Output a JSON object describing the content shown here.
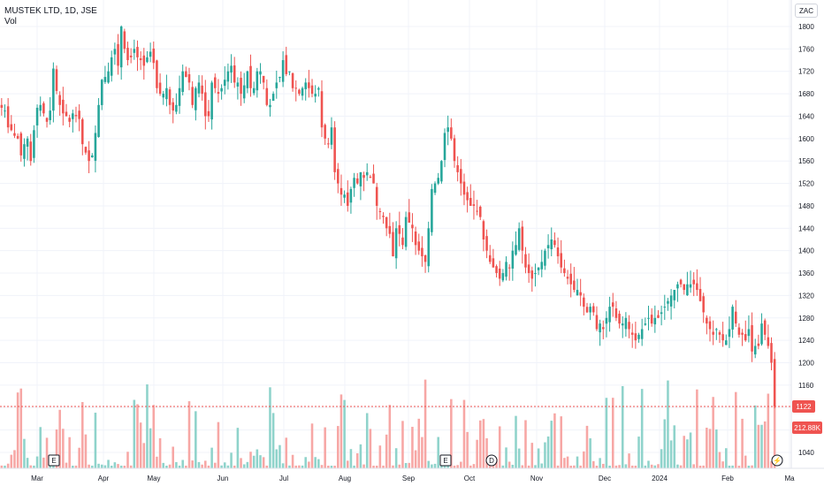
{
  "header": {
    "symbol": "MUSTEK LTD, 1D, JSE",
    "volume_label": "Vol",
    "currency": "ZAC"
  },
  "colors": {
    "up": "#26a69a",
    "down": "#ef5350",
    "up_vol": "#8fd3cb",
    "down_vol": "#f7a7a5",
    "grid": "#f0f3fa",
    "axis_text": "#131722",
    "last_price_line": "#ef5350"
  },
  "chart_data": {
    "type": "candlestick",
    "y_ticks": [
      1040,
      1080,
      1120,
      1160,
      1200,
      1240,
      1280,
      1320,
      1360,
      1400,
      1440,
      1480,
      1520,
      1560,
      1600,
      1640,
      1680,
      1720,
      1760,
      1800
    ],
    "ylim": [
      1020,
      1820
    ],
    "x_ticks": [
      "Mar",
      "Apr",
      "May",
      "Jun",
      "Jul",
      "Aug",
      "Sep",
      "Oct",
      "Nov",
      "Dec",
      "2024",
      "Feb",
      "Ma"
    ],
    "last_price": "1122",
    "last_volume": "212.88K",
    "event_markers": [
      {
        "label": "E",
        "after_tick": "Mar"
      },
      {
        "label": "E",
        "after_tick": "Sep"
      },
      {
        "label": "D",
        "after_tick": "Oct"
      },
      {
        "label": "⚡",
        "after_tick": "Feb"
      }
    ],
    "series": {
      "close": [
        1655,
        1650,
        1620,
        1615,
        1605,
        1600,
        1570,
        1590,
        1600,
        1560,
        1615,
        1655,
        1660,
        1645,
        1630,
        1650,
        1725,
        1685,
        1660,
        1645,
        1640,
        1630,
        1645,
        1640,
        1635,
        1590,
        1575,
        1560,
        1570,
        1610,
        1660,
        1705,
        1710,
        1720,
        1745,
        1760,
        1730,
        1800,
        1760,
        1740,
        1745,
        1760,
        1745,
        1740,
        1730,
        1745,
        1755,
        1735,
        1690,
        1680,
        1680,
        1690,
        1660,
        1650,
        1660,
        1690,
        1720,
        1710,
        1700,
        1660,
        1690,
        1700,
        1680,
        1640,
        1640,
        1700,
        1690,
        1680,
        1690,
        1705,
        1720,
        1730,
        1700,
        1700,
        1680,
        1695,
        1720,
        1690,
        1690,
        1720,
        1720,
        1700,
        1660,
        1660,
        1680,
        1700,
        1710,
        1740,
        1715,
        1720,
        1690,
        1690,
        1680,
        1690,
        1700,
        1690,
        1680,
        1680,
        1690,
        1620,
        1600,
        1590,
        1620,
        1540,
        1520,
        1500,
        1500,
        1480,
        1510,
        1530,
        1520,
        1540,
        1530,
        1540,
        1530,
        1520,
        1480,
        1470,
        1460,
        1440,
        1430,
        1390,
        1440,
        1430,
        1410,
        1460,
        1450,
        1440,
        1410,
        1400,
        1390,
        1380,
        1440,
        1510,
        1520,
        1530,
        1560,
        1610,
        1620,
        1600,
        1560,
        1540,
        1520,
        1500,
        1490,
        1480,
        1480,
        1470,
        1460,
        1420,
        1400,
        1380,
        1370,
        1360,
        1350,
        1360,
        1380,
        1370,
        1400,
        1410,
        1440,
        1400,
        1370,
        1360,
        1350,
        1360,
        1370,
        1380,
        1400,
        1410,
        1420,
        1410,
        1390,
        1370,
        1360,
        1350,
        1340,
        1330,
        1330,
        1320,
        1300,
        1290,
        1300,
        1290,
        1260,
        1270,
        1260,
        1280,
        1300,
        1300,
        1280,
        1270,
        1270,
        1280,
        1260,
        1250,
        1240,
        1250,
        1260,
        1270,
        1280,
        1270,
        1280,
        1280,
        1290,
        1300,
        1310,
        1320,
        1330,
        1340,
        1340,
        1330,
        1340,
        1340,
        1340,
        1330,
        1310,
        1290,
        1270,
        1260,
        1250,
        1260,
        1250,
        1240,
        1240,
        1260,
        1300,
        1270,
        1250,
        1250,
        1240,
        1260,
        1220,
        1230,
        1230,
        1270,
        1250,
        1230,
        1200,
        1122
      ]
    },
    "volume_scale_note": "volume bars drawn relative to visible max"
  }
}
